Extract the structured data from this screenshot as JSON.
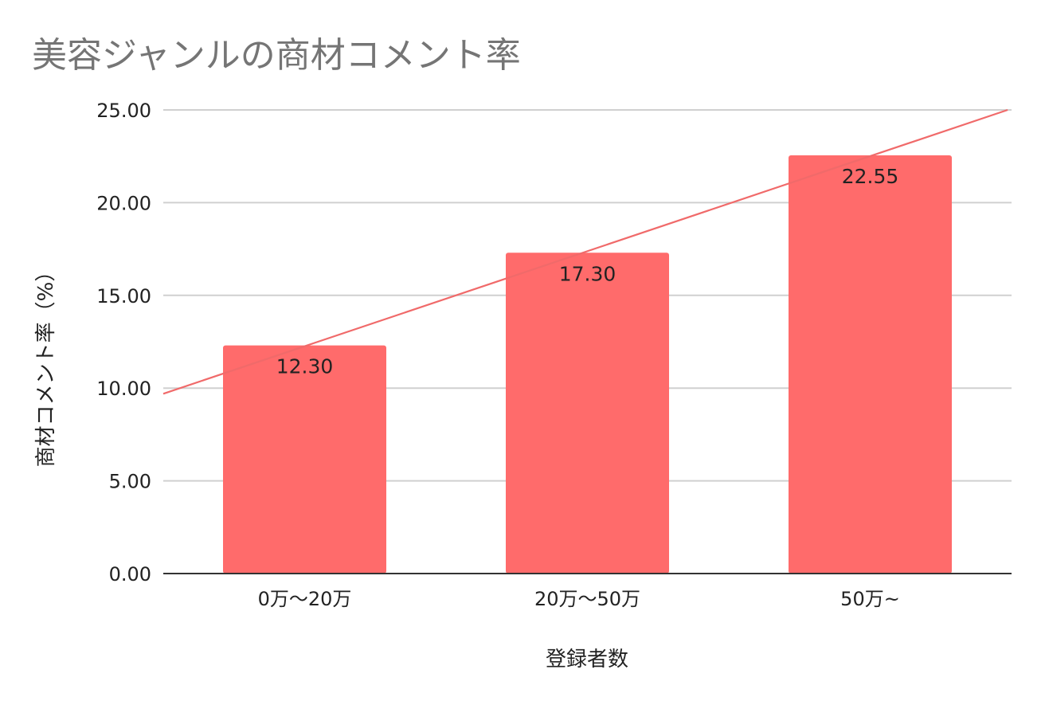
{
  "chart_data": {
    "type": "bar",
    "title": "美容ジャンルの商材コメント率",
    "xlabel": "登録者数",
    "ylabel": "商材コメント率（%）",
    "categories": [
      "0万〜20万",
      "20万〜50万",
      "50万~"
    ],
    "series": [
      {
        "values": [
          12.3,
          17.3,
          22.55
        ],
        "data_labels": [
          "12.30",
          "17.30",
          "22.55"
        ],
        "color": "#ff6b6b"
      }
    ],
    "trendline": {
      "type": "linear",
      "color": "#f06a6a"
    },
    "ylim": [
      0,
      25
    ],
    "yticks": [
      "0.00",
      "5.00",
      "10.00",
      "15.00",
      "20.00",
      "25.00"
    ],
    "grid": true,
    "legend": "none"
  },
  "colors": {
    "bar": "#ff6b6b",
    "trend": "#f06a6a",
    "grid": "#d0d0d0",
    "axis": "#333333",
    "title": "#757575"
  }
}
